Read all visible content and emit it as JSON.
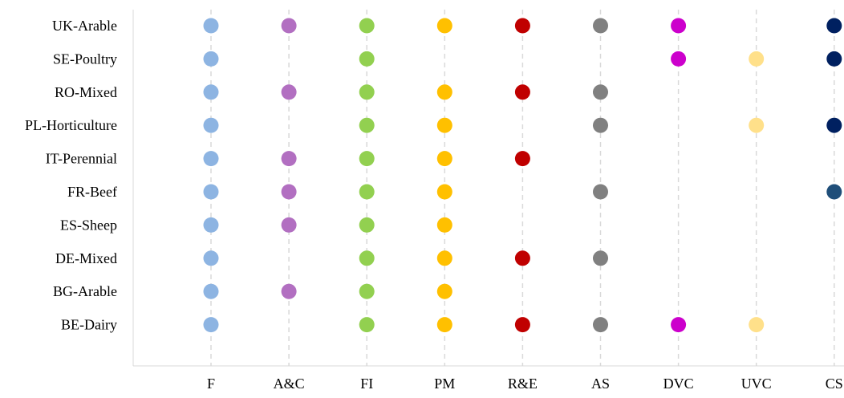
{
  "chart_data": {
    "type": "scatter",
    "title": "",
    "xlabel": "",
    "ylabel": "",
    "grid": "vertical dashed",
    "categories_x": [
      "F",
      "A&C",
      "FI",
      "PM",
      "R&E",
      "AS",
      "DVC",
      "UVC",
      "CS"
    ],
    "categories_y": [
      "UK-Arable",
      "SE-Poultry",
      "RO-Mixed",
      "PL-Horticulture",
      "IT-Perennial",
      "FR-Beef",
      "ES-Sheep",
      "DE-Mixed",
      "BG-Arable",
      "BE-Dairy"
    ],
    "colors": {
      "F": "#8DB4E2",
      "A&C": "#B26FC1",
      "FI": "#92D050",
      "PM": "#FFC000",
      "R&E": "#C00000",
      "AS": "#808080",
      "DVC": "#CC00CC",
      "UVC": "#FFE08A",
      "CS": "#002060"
    },
    "points": [
      {
        "y": "UK-Arable",
        "x": [
          "F",
          "A&C",
          "FI",
          "PM",
          "R&E",
          "AS",
          "DVC",
          "CS"
        ]
      },
      {
        "y": "SE-Poultry",
        "x": [
          "F",
          "FI",
          "DVC",
          "UVC",
          "CS"
        ]
      },
      {
        "y": "RO-Mixed",
        "x": [
          "F",
          "A&C",
          "FI",
          "PM",
          "R&E",
          "AS"
        ]
      },
      {
        "y": "PL-Horticulture",
        "x": [
          "F",
          "FI",
          "PM",
          "AS",
          "UVC",
          "CS"
        ]
      },
      {
        "y": "IT-Perennial",
        "x": [
          "F",
          "A&C",
          "FI",
          "PM",
          "R&E"
        ]
      },
      {
        "y": "FR-Beef",
        "x": [
          "F",
          "A&C",
          "FI",
          "PM",
          "AS",
          "CS"
        ],
        "color_overrides": {
          "CS": "#1F4E79"
        }
      },
      {
        "y": "ES-Sheep",
        "x": [
          "F",
          "A&C",
          "FI",
          "PM"
        ]
      },
      {
        "y": "DE-Mixed",
        "x": [
          "F",
          "FI",
          "PM",
          "R&E",
          "AS"
        ]
      },
      {
        "y": "BG-Arable",
        "x": [
          "F",
          "A&C",
          "FI",
          "PM"
        ]
      },
      {
        "y": "BE-Dairy",
        "x": [
          "F",
          "FI",
          "PM",
          "R&E",
          "AS",
          "DVC",
          "UVC"
        ]
      }
    ]
  }
}
